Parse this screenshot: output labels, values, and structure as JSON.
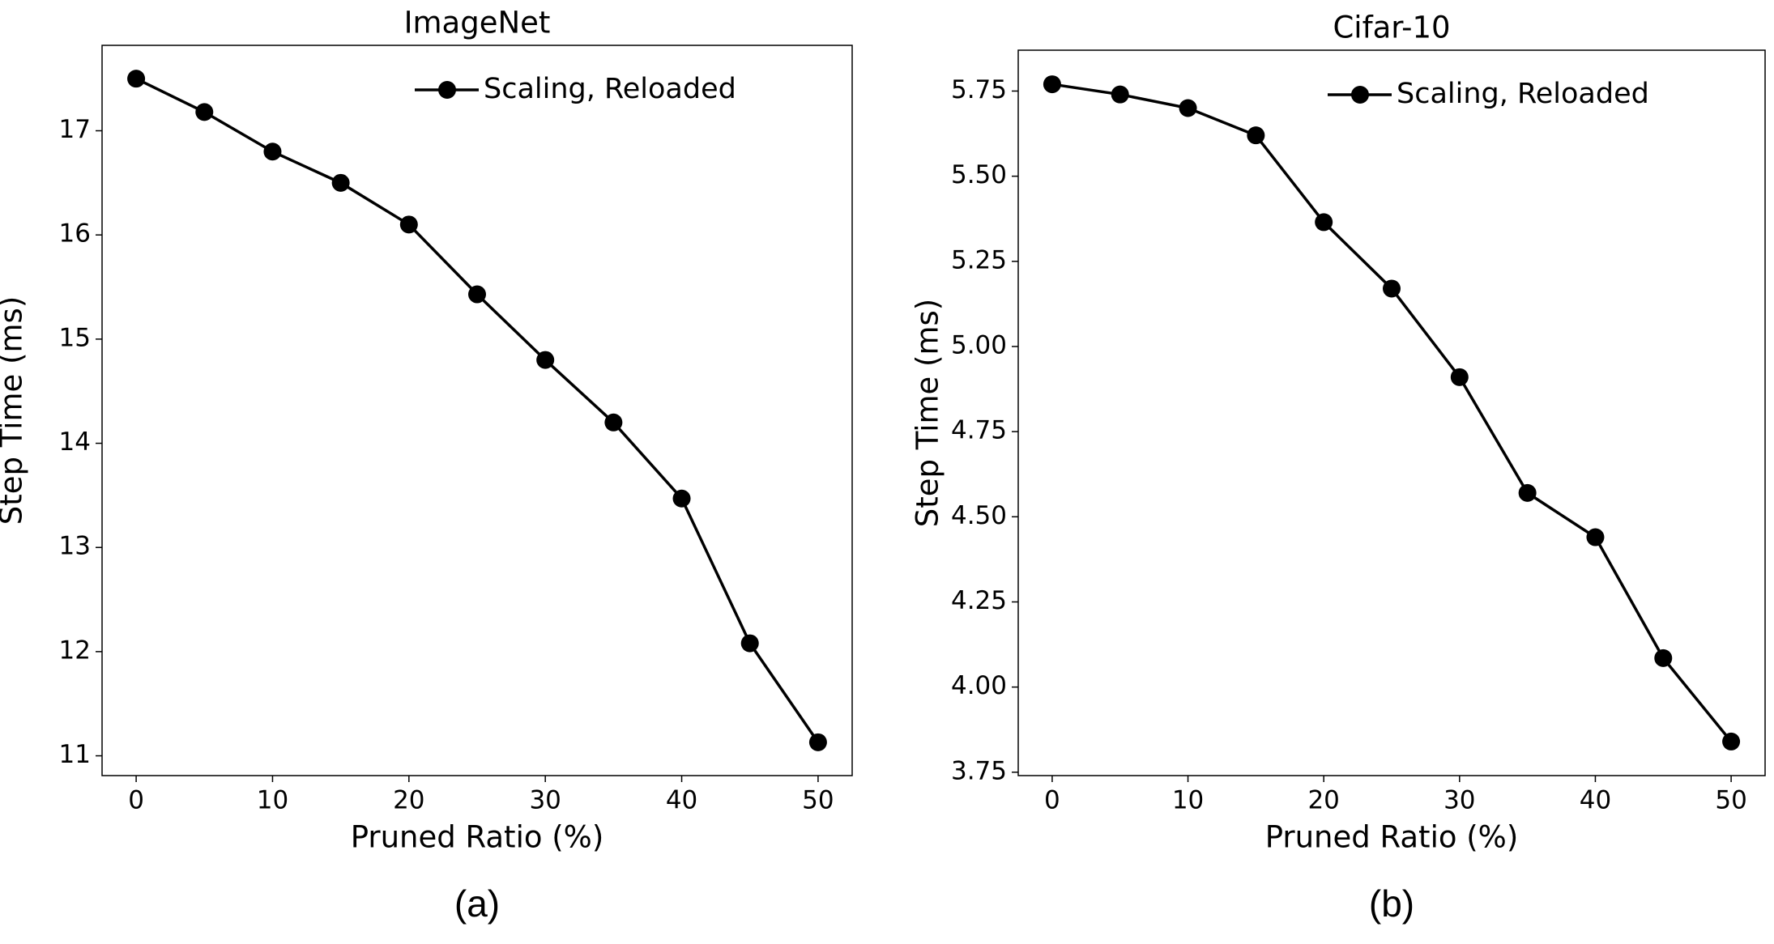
{
  "chart_data": [
    {
      "type": "line",
      "title": "ImageNet",
      "caption": "(a)",
      "xlabel": "Pruned Ratio (%)",
      "ylabel": "Step Time (ms)",
      "x": [
        0,
        5,
        10,
        15,
        20,
        25,
        30,
        35,
        40,
        45,
        50
      ],
      "series": [
        {
          "name": "Scaling, Reloaded",
          "color": "#000000",
          "values": [
            17.5,
            17.18,
            16.8,
            16.5,
            16.1,
            15.43,
            14.8,
            14.2,
            13.47,
            12.08,
            11.13
          ]
        }
      ],
      "xlim": [
        -2.5,
        52.5
      ],
      "xticks": [
        0,
        10,
        20,
        30,
        40,
        50
      ],
      "ylim": [
        10.81,
        17.82
      ],
      "yticks": [
        11,
        12,
        13,
        14,
        15,
        16,
        17
      ],
      "legend": "upper right",
      "grid": false
    },
    {
      "type": "line",
      "title": "Cifar-10",
      "caption": "(b)",
      "xlabel": "Pruned Ratio (%)",
      "ylabel": "Step Time (ms)",
      "x": [
        0,
        5,
        10,
        15,
        20,
        25,
        30,
        35,
        40,
        45,
        50
      ],
      "series": [
        {
          "name": "Scaling, Reloaded",
          "color": "#000000",
          "values": [
            5.77,
            5.74,
            5.7,
            5.62,
            5.365,
            5.17,
            4.91,
            4.57,
            4.44,
            4.085,
            3.84
          ]
        }
      ],
      "xlim": [
        -2.5,
        52.5
      ],
      "xticks": [
        0,
        10,
        20,
        30,
        40,
        50
      ],
      "ylim": [
        3.74,
        5.87
      ],
      "yticks": [
        3.75,
        {
          "value": 4.0,
          "label": "4.00"
        },
        4.25,
        {
          "value": 4.5,
          "label": "4.50"
        },
        4.75,
        {
          "value": 5.0,
          "label": "5.00"
        },
        5.25,
        {
          "value": 5.5,
          "label": "5.50"
        },
        5.75
      ],
      "legend": "upper right",
      "grid": false
    }
  ]
}
